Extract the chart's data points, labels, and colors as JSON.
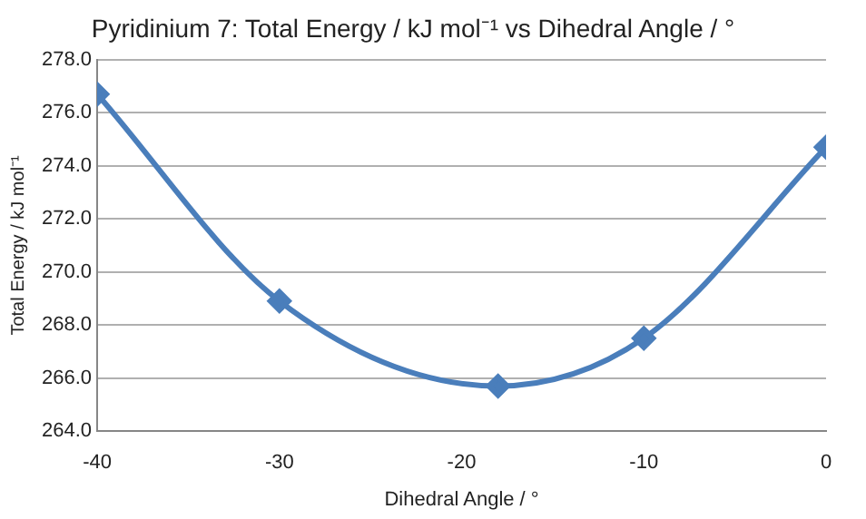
{
  "chart_data": {
    "type": "line",
    "title": "Pyridinium 7: Total Energy / kJ mol⁻¹ vs Dihedral Angle / °",
    "xlabel": "Dihedral Angle / °",
    "ylabel": "Total Energy / kJ mol⁻¹",
    "x": [
      -40,
      -30,
      -18,
      -10,
      0
    ],
    "series": [
      {
        "color": "#4a7ebb",
        "values": [
          276.7,
          268.9,
          265.7,
          267.5,
          274.7
        ]
      }
    ],
    "xlim": [
      -40,
      0
    ],
    "xticks": [
      -40,
      -30,
      -20,
      -10,
      0
    ],
    "ylim": [
      264,
      278
    ],
    "yticks": [
      {
        "value": 264,
        "label": "264.0"
      },
      {
        "value": 266,
        "label": "266.0"
      },
      {
        "value": 268,
        "label": "268.0"
      },
      {
        "value": 270,
        "label": "270.0"
      },
      {
        "value": 272,
        "label": "272.0"
      },
      {
        "value": 274,
        "label": "274.0"
      },
      {
        "value": 276,
        "label": "276.0"
      },
      {
        "value": 278,
        "label": "278.0"
      }
    ],
    "grid": "y",
    "legend": false,
    "marker": "diamond",
    "line_style": "solid"
  }
}
